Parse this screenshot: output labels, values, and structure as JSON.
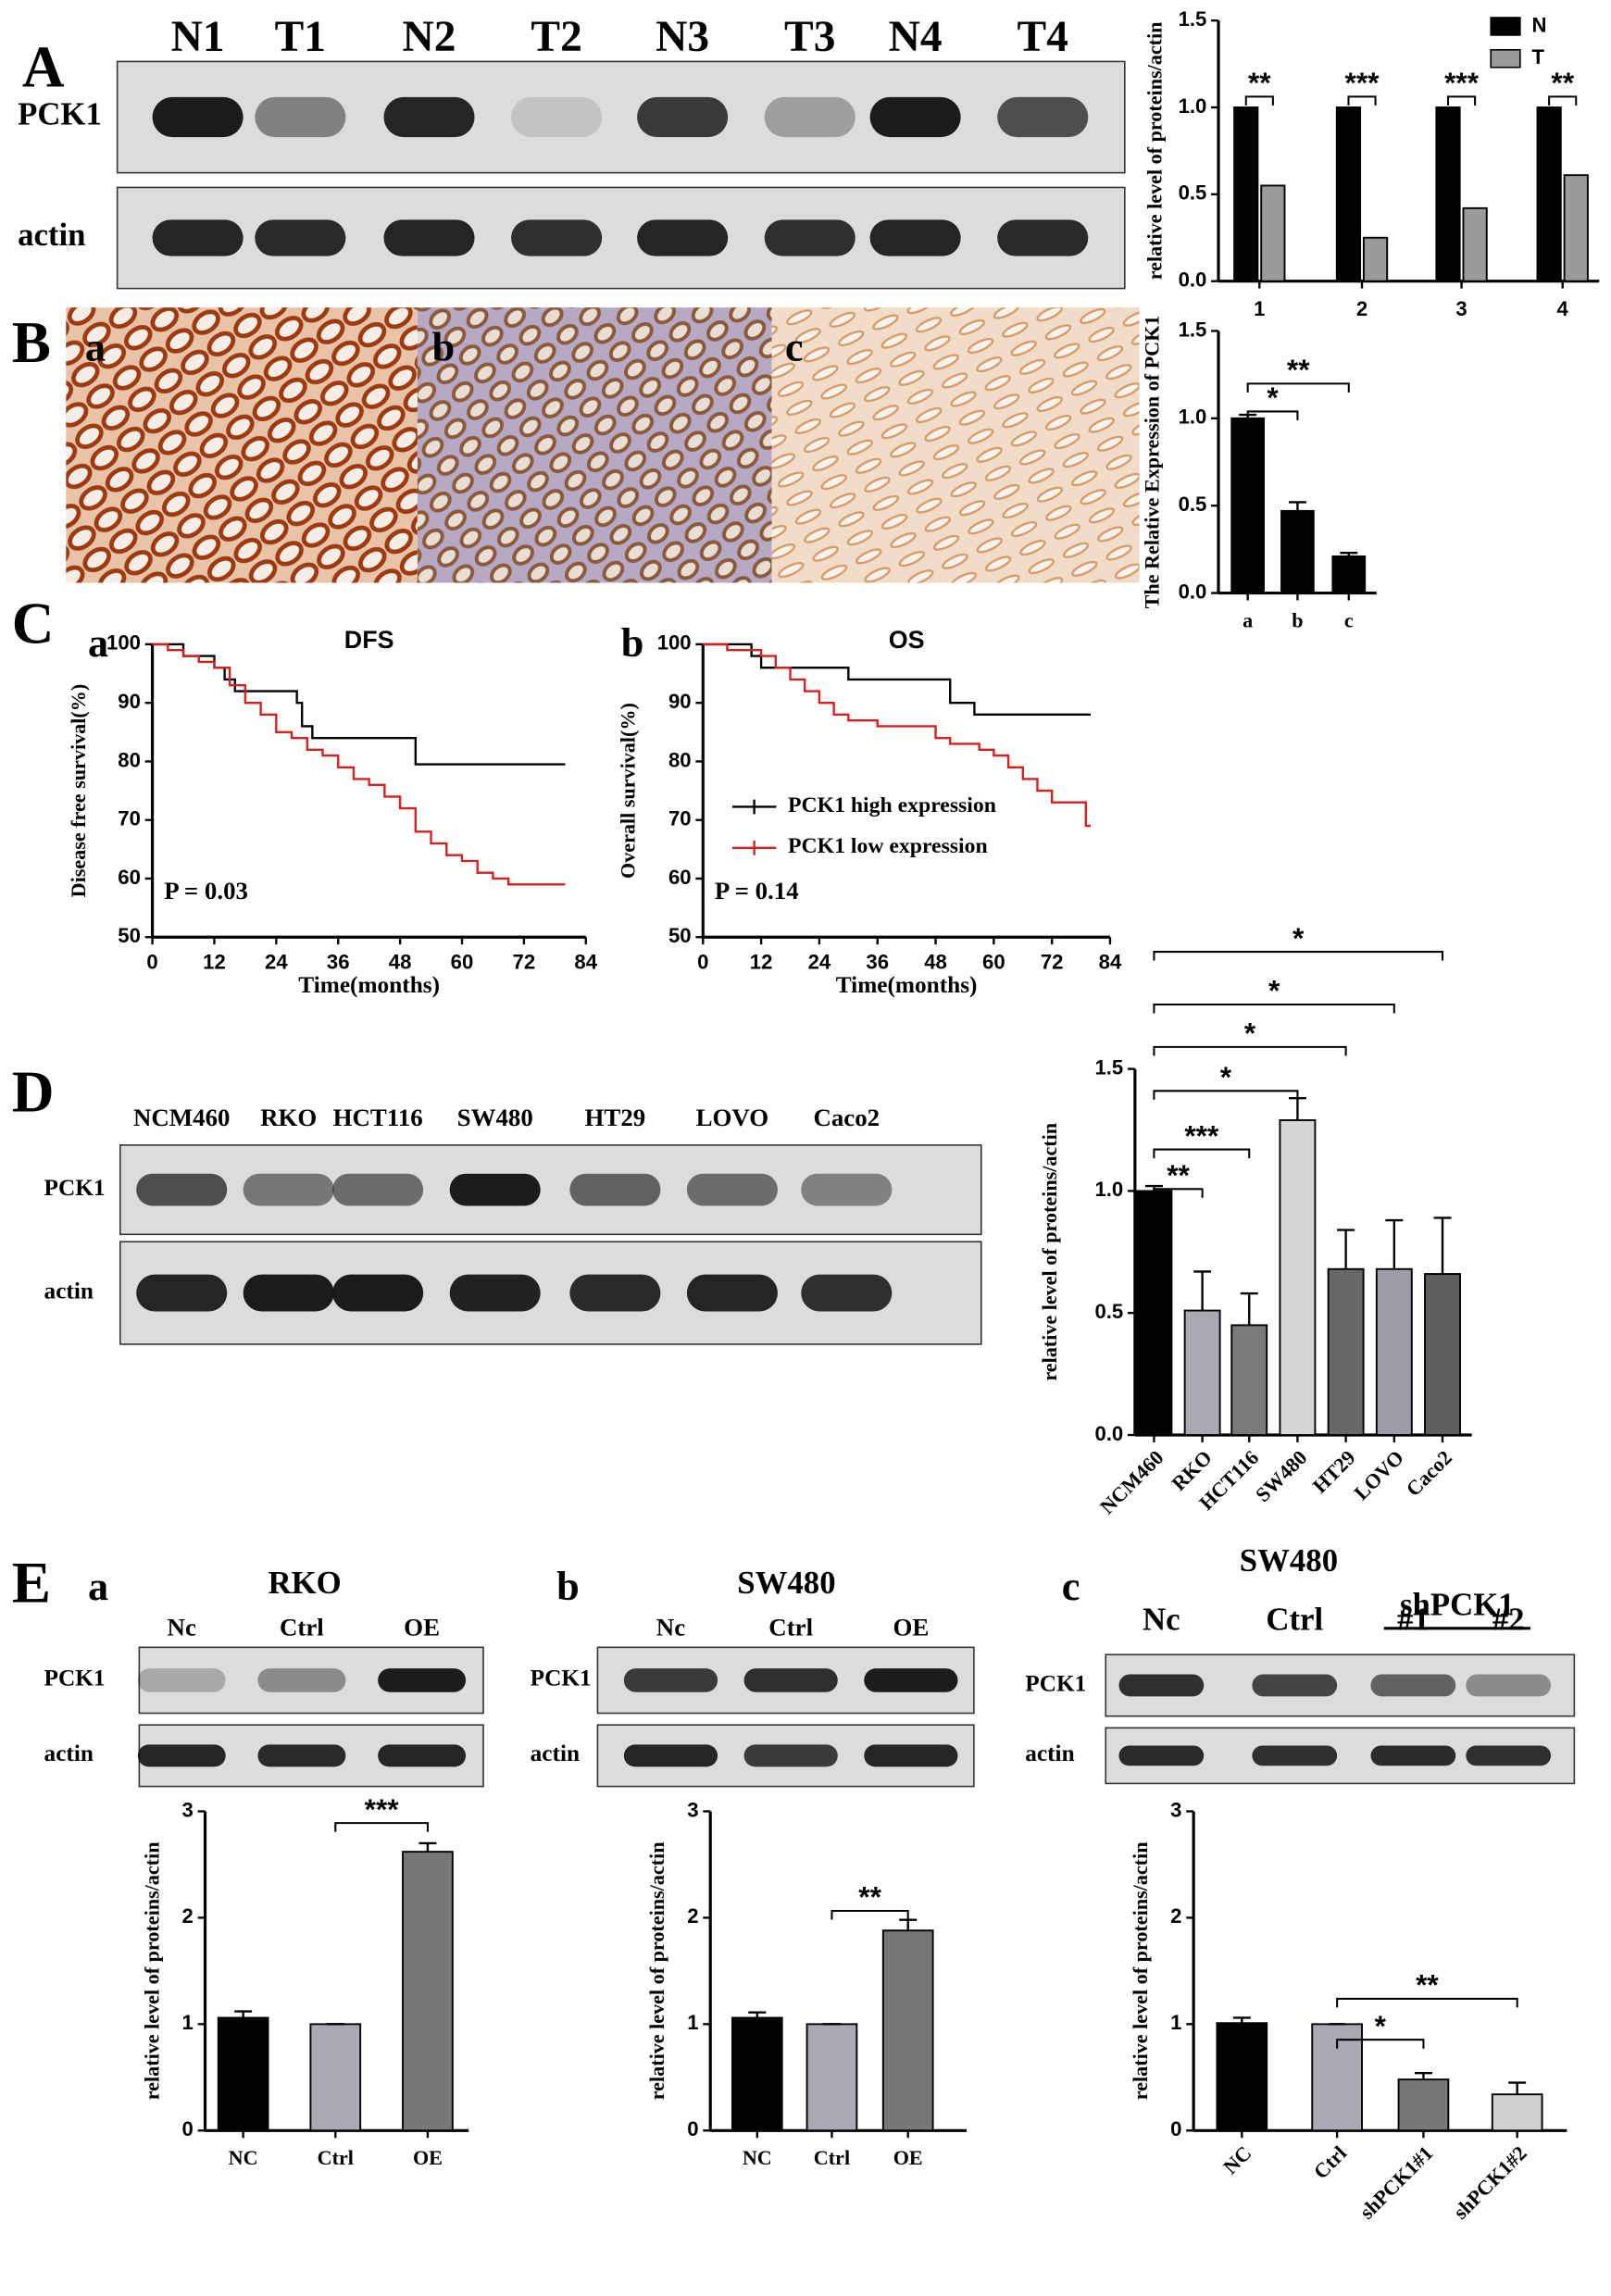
{
  "panel_labels": [
    "A",
    "B",
    "C",
    "D",
    "E"
  ],
  "sub_labels": {
    "B": [
      "a",
      "b",
      "c"
    ],
    "C": [
      "a",
      "b"
    ],
    "E": [
      "a",
      "b",
      "c"
    ]
  },
  "blots": [
    {
      "lanes": [
        "N1",
        "T1",
        "N2",
        "T2",
        "N3",
        "T3",
        "N4",
        "T4"
      ],
      "rows": [
        "PCK1",
        "actin"
      ]
    },
    {
      "lanes": [
        "NCM460",
        "RKO",
        "HCT116",
        "SW480",
        "HT29",
        "LOVO",
        "Caco2"
      ],
      "rows": [
        "PCK1",
        "actin"
      ]
    },
    {
      "title": "RKO",
      "lanes": [
        "Nc",
        "Ctrl",
        "OE"
      ],
      "rows": [
        "PCK1",
        "actin"
      ]
    },
    {
      "title": "SW480",
      "lanes": [
        "Nc",
        "Ctrl",
        "OE"
      ],
      "rows": [
        "PCK1",
        "actin"
      ]
    },
    {
      "title": "SW480",
      "group": "shPCK1",
      "lanes": [
        "Nc",
        "Ctrl",
        "#1",
        "#2"
      ],
      "rows": [
        "PCK1",
        "actin"
      ]
    }
  ],
  "chart_data": [
    {
      "type": "bar",
      "y_label": "relative level of proteins/actin",
      "categories": [
        "1",
        "2",
        "3",
        "4"
      ],
      "series": [
        {
          "name": "N",
          "color": "#000000",
          "values": [
            1,
            1,
            1,
            1
          ]
        },
        {
          "name": "T",
          "color": "#9a9a9a",
          "values": [
            0.55,
            0.25,
            0.42,
            0.61
          ]
        }
      ],
      "ylim": [
        0,
        1.5
      ],
      "yticks": [
        {
          "value": 0,
          "label": "0.0"
        },
        0.5,
        {
          "value": 1,
          "label": "1.0"
        },
        1.5
      ],
      "annotations": [
        {
          "text": "**",
          "category": "1"
        },
        {
          "text": "***",
          "category": "2"
        },
        {
          "text": "***",
          "category": "3"
        },
        {
          "text": "**",
          "category": "4"
        }
      ]
    },
    {
      "type": "bar",
      "y_label": "The Relative Expression of PCK1",
      "categories": [
        "a",
        "b",
        "c"
      ],
      "values": [
        1,
        0.47,
        0.21
      ],
      "errors": [
        0.02,
        0.05,
        0.02
      ],
      "color": "#000000",
      "ylim": [
        0,
        1.5
      ],
      "yticks": [
        {
          "value": 0,
          "label": "0.0"
        },
        0.5,
        {
          "value": 1,
          "label": "1.0"
        },
        1.5
      ],
      "annotations": [
        {
          "text": "*",
          "between": [
            "a",
            "b"
          ]
        },
        {
          "text": "**",
          "between": [
            "a",
            "c"
          ]
        }
      ]
    },
    {
      "type": "line",
      "step": true,
      "title": "DFS",
      "y_label": "Disease free survival(%)",
      "x_label": "Time(months)",
      "p_value": "P = 0.03",
      "series": [
        {
          "color": "#000000",
          "x": [
            0,
            6,
            12,
            14,
            16,
            28,
            29,
            31,
            51,
            80
          ],
          "values": [
            100,
            98,
            96,
            94,
            92,
            90,
            86,
            84,
            79.5,
            79.5
          ]
        },
        {
          "color": "#d62020",
          "x": [
            0,
            3,
            6,
            9,
            12,
            15,
            18,
            21,
            24,
            27,
            30,
            33,
            36,
            39,
            42,
            45,
            48,
            51,
            54,
            57,
            60,
            63,
            66,
            69,
            72,
            80
          ],
          "values": [
            100,
            99,
            98,
            97,
            96,
            93,
            90,
            88,
            85,
            84,
            82,
            81,
            79,
            77,
            76,
            74,
            72,
            68,
            66,
            64,
            63,
            61,
            60,
            59,
            59,
            59
          ]
        }
      ],
      "xlim": [
        0,
        84
      ],
      "xticks": [
        0,
        12,
        24,
        36,
        48,
        60,
        72,
        84
      ],
      "ylim": [
        50,
        100
      ],
      "yticks": [
        50,
        60,
        70,
        80,
        90,
        100
      ]
    },
    {
      "type": "line",
      "step": true,
      "title": "OS",
      "y_label": "Overall survival(%)",
      "x_label": "Time(months)",
      "p_value": "P = 0.14",
      "series": [
        {
          "name": "PCK1 high expression",
          "color": "#000000",
          "x": [
            0,
            10,
            12,
            30,
            51,
            56,
            80
          ],
          "values": [
            100,
            98,
            96,
            94,
            90,
            88,
            88
          ]
        },
        {
          "name": "PCK1 low expression",
          "color": "#d62020",
          "x": [
            0,
            5,
            12,
            15,
            18,
            21,
            24,
            27,
            30,
            36,
            45,
            48,
            51,
            54,
            57,
            60,
            63,
            66,
            69,
            72,
            78,
            79,
            80
          ],
          "values": [
            100,
            99,
            98,
            96,
            94,
            92,
            90,
            88,
            87,
            86,
            86,
            84,
            83,
            83,
            82,
            81,
            79,
            77,
            75,
            73,
            73,
            69,
            69
          ]
        }
      ],
      "xlim": [
        0,
        84
      ],
      "xticks": [
        0,
        12,
        24,
        36,
        48,
        60,
        72,
        84
      ],
      "ylim": [
        50,
        100
      ],
      "yticks": [
        50,
        60,
        70,
        80,
        90,
        100
      ]
    },
    {
      "type": "bar",
      "y_label": "relative level of proteins/actin",
      "categories": [
        "NCM460",
        "RKO",
        "HCT116",
        "SW480",
        "HT29",
        "LOVO",
        "Caco2"
      ],
      "values": [
        1,
        0.51,
        0.45,
        1.29,
        0.68,
        0.68,
        0.66
      ],
      "errors": [
        0.02,
        0.16,
        0.13,
        0.09,
        0.16,
        0.2,
        0.23
      ],
      "colors": [
        "#000000",
        "#a9a9b2",
        "#7a7a7a",
        "#d6d6d6",
        "#686868",
        "#9c9ca4",
        "#5e5e5e"
      ],
      "ylim": [
        0,
        1.5
      ],
      "yticks": [
        {
          "value": 0,
          "label": "0.0"
        },
        0.5,
        {
          "value": 1,
          "label": "1.0"
        },
        1.5
      ],
      "annotations": [
        {
          "text": "**",
          "between": [
            "NCM460",
            "RKO"
          ]
        },
        {
          "text": "***",
          "between": [
            "NCM460",
            "HCT116"
          ]
        },
        {
          "text": "*",
          "between": [
            "NCM460",
            "SW480"
          ]
        },
        {
          "text": "*",
          "between": [
            "NCM460",
            "HT29"
          ]
        },
        {
          "text": "*",
          "between": [
            "NCM460",
            "LOVO"
          ]
        },
        {
          "text": "*",
          "between": [
            "NCM460",
            "Caco2"
          ]
        }
      ]
    },
    {
      "type": "bar",
      "y_label": "relative level of proteins/actin",
      "categories": [
        "NC",
        "Ctrl",
        "OE"
      ],
      "values": [
        1.06,
        1,
        2.62
      ],
      "errors": [
        0.06,
        0,
        0.08
      ],
      "colors": [
        "#000000",
        "#a9a9b2",
        "#777777"
      ],
      "ylim": [
        0,
        3
      ],
      "yticks": [
        0,
        1,
        2,
        3
      ],
      "annotations": [
        {
          "text": "***",
          "between": [
            "Ctrl",
            "OE"
          ]
        }
      ]
    },
    {
      "type": "bar",
      "y_label": "relative level of proteins/actin",
      "categories": [
        "NC",
        "Ctrl",
        "OE"
      ],
      "values": [
        1.06,
        1,
        1.88
      ],
      "errors": [
        0.05,
        0,
        0.1
      ],
      "colors": [
        "#000000",
        "#a9a9b2",
        "#777777"
      ],
      "ylim": [
        0,
        3
      ],
      "yticks": [
        0,
        1,
        2,
        3
      ],
      "annotations": [
        {
          "text": "**",
          "between": [
            "Ctrl",
            "OE"
          ]
        }
      ]
    },
    {
      "type": "bar",
      "y_label": "relative level of proteins/actin",
      "categories": [
        "NC",
        "Ctrl",
        "shPCK1#1",
        "shPCK1#2"
      ],
      "values": [
        1.01,
        1,
        0.48,
        0.34
      ],
      "errors": [
        0.05,
        0,
        0.06,
        0.11
      ],
      "colors": [
        "#000000",
        "#a9a9b2",
        "#777777",
        "#cfcfcf"
      ],
      "ylim": [
        0,
        3
      ],
      "yticks": [
        0,
        1,
        2,
        3
      ],
      "annotations": [
        {
          "text": "*",
          "between": [
            "Ctrl",
            "shPCK1#1"
          ]
        },
        {
          "text": "**",
          "between": [
            "Ctrl",
            "shPCK1#2"
          ]
        }
      ]
    }
  ]
}
